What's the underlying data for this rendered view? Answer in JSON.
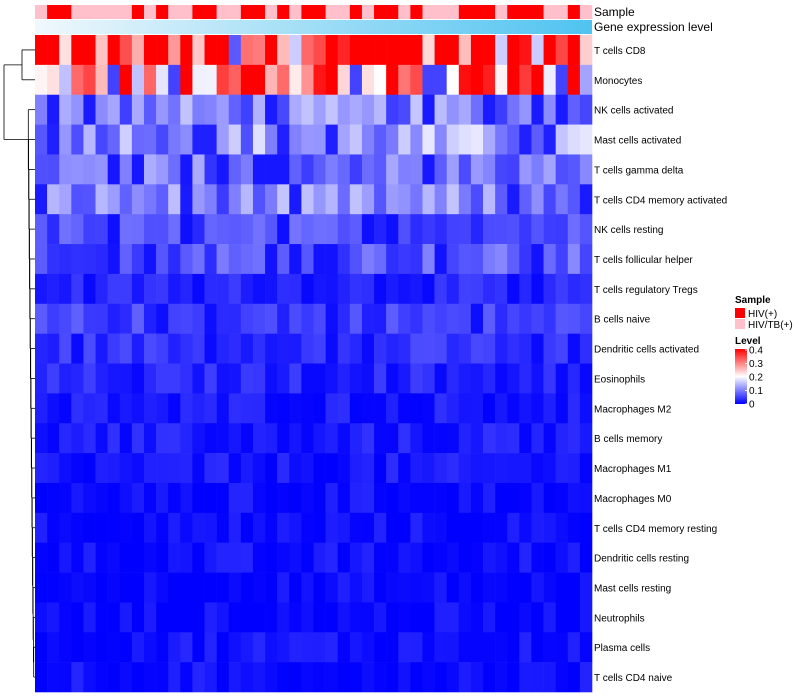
{
  "chart_data": {
    "type": "heatmap",
    "annotation_labels": {
      "sample": "Sample",
      "gene_expression": "Gene expression level"
    },
    "rows": [
      "T cells CD8",
      "Monocytes",
      "NK cells activated",
      "Mast cells activated",
      "T cells gamma delta",
      "T cells CD4 memory activated",
      "NK cells resting",
      "T cells follicular helper",
      "T cells regulatory  Tregs",
      "B cells naive",
      "Dendritic cells activated",
      "Eosinophils",
      "Macrophages M2",
      "B cells memory",
      "Macrophages M1",
      "Macrophages M0",
      "T cells CD4 memory resting",
      "Dendritic cells resting",
      "Mast cells resting",
      "Neutrophils",
      "Plasma cells",
      "T cells CD4 naive"
    ],
    "row_means": [
      0.35,
      0.26,
      0.1,
      0.12,
      0.09,
      0.1,
      0.06,
      0.07,
      0.03,
      0.05,
      0.04,
      0.03,
      0.02,
      0.02,
      0.015,
      0.01,
      0.01,
      0.01,
      0.005,
      0.005,
      0.015,
      0.01
    ],
    "n_samples": 46,
    "sample_groups": [
      "HIV/TB(+)",
      "HIV(+)",
      "HIV(+)",
      "HIV/TB(+)",
      "HIV/TB(+)",
      "HIV/TB(+)",
      "HIV/TB(+)",
      "HIV/TB(+)",
      "HIV(+)",
      "HIV/TB(+)",
      "HIV(+)",
      "HIV/TB(+)",
      "HIV/TB(+)",
      "HIV(+)",
      "HIV(+)",
      "HIV/TB(+)",
      "HIV/TB(+)",
      "HIV(+)",
      "HIV(+)",
      "HIV/TB(+)",
      "HIV(+)",
      "HIV/TB(+)",
      "HIV(+)",
      "HIV(+)",
      "HIV/TB(+)",
      "HIV/TB(+)",
      "HIV(+)",
      "HIV/TB(+)",
      "HIV(+)",
      "HIV(+)",
      "HIV/TB(+)",
      "HIV(+)",
      "HIV/TB(+)",
      "HIV/TB(+)",
      "HIV/TB(+)",
      "HIV(+)",
      "HIV(+)",
      "HIV(+)",
      "HIV/TB(+)",
      "HIV(+)",
      "HIV(+)",
      "HIV(+)",
      "HIV/TB(+)",
      "HIV/TB(+)",
      "HIV(+)",
      "HIV/TB(+)"
    ],
    "expression_gradient": {
      "low": "#f0f8fc",
      "high": "#4fc3f0"
    },
    "color_scale": {
      "min": 0,
      "max": 0.4,
      "low": "#0000ff",
      "mid": "#ffffff",
      "high": "#ff0000"
    },
    "legend": {
      "sample_title": "Sample",
      "sample_entries": [
        {
          "label": "HIV(+)",
          "color": "#ff0000"
        },
        {
          "label": "HIV/TB(+)",
          "color": "#ffc0cb"
        }
      ],
      "level_title": "Level",
      "level_ticks": [
        "0.4",
        "0.3",
        "0.2",
        "0.1",
        "0"
      ],
      "placement": "right"
    }
  }
}
